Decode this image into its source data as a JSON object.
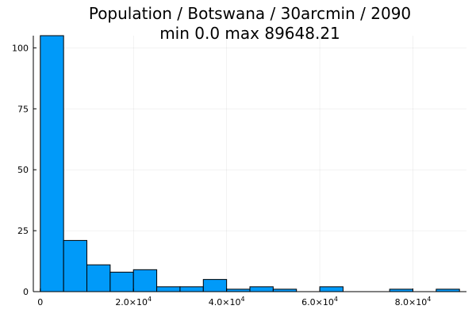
{
  "chart_data": {
    "type": "bar",
    "title_line1": "Population / Botswana / 30arcmin / 2090",
    "title_line2": "min 0.0  max 89648.21",
    "xlabel": "",
    "ylabel": "",
    "grid": true,
    "legend": "none",
    "bar_color": "#009af9",
    "bin_width": 5000,
    "bin_starts": [
      0,
      5000,
      10000,
      15000,
      20000,
      25000,
      30000,
      35000,
      40000,
      45000,
      50000,
      55000,
      60000,
      65000,
      70000,
      75000,
      80000,
      85000
    ],
    "values": [
      105,
      21,
      11,
      8,
      9,
      2,
      2,
      5,
      1,
      2,
      1,
      0,
      2,
      0,
      0,
      1,
      0,
      1
    ],
    "xlim": [
      -1500,
      91500
    ],
    "ylim": [
      0,
      105
    ],
    "y_ticks": [
      {
        "value": 0,
        "label": "0"
      },
      {
        "value": 25,
        "label": "25"
      },
      {
        "value": 50,
        "label": "50"
      },
      {
        "value": 75,
        "label": "75"
      },
      {
        "value": 100,
        "label": "100"
      }
    ],
    "x_ticks": [
      {
        "value": 0,
        "label": "0",
        "mantissa": "",
        "exponent": ""
      },
      {
        "value": 20000,
        "label": "",
        "mantissa": "2.0×10",
        "exponent": "4"
      },
      {
        "value": 40000,
        "label": "",
        "mantissa": "4.0×10",
        "exponent": "4"
      },
      {
        "value": 60000,
        "label": "",
        "mantissa": "6.0×10",
        "exponent": "4"
      },
      {
        "value": 80000,
        "label": "",
        "mantissa": "8.0×10",
        "exponent": "4"
      }
    ]
  }
}
